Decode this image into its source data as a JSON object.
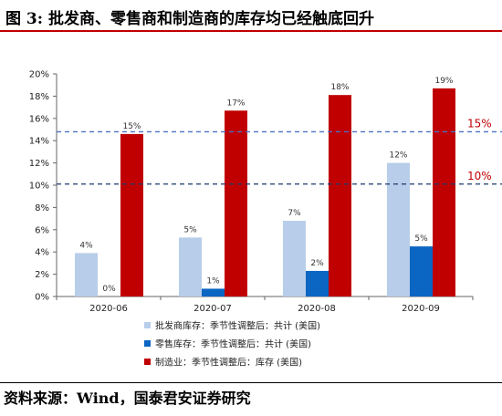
{
  "title": "图 3: 批发商、零售商和制造商的库存均已经触底回升",
  "source": "资料来源：Wind，国泰君安证券研究",
  "chart_data": {
    "type": "bar",
    "categories": [
      "2020-06",
      "2020-07",
      "2020-08",
      "2020-09"
    ],
    "ylim": [
      0,
      20
    ],
    "yticks": [
      "0%",
      "2%",
      "4%",
      "6%",
      "8%",
      "10%",
      "12%",
      "14%",
      "16%",
      "18%",
      "20%"
    ],
    "series": [
      {
        "name": "批发商库存：季节性调整后：共计 (美国)",
        "color": "#b7cde9",
        "values": [
          3.9,
          5.3,
          6.8,
          12.0
        ],
        "labels": [
          "4%",
          "5%",
          "7%",
          "12%"
        ]
      },
      {
        "name": "零售库存：季节性调整后：共计 (美国)",
        "color": "#0a66c2",
        "values": [
          0.0,
          0.7,
          2.3,
          4.5
        ],
        "labels": [
          "0%",
          "1%",
          "2%",
          "5%"
        ]
      },
      {
        "name": "制造业：季节性调整后：库存 (美国)",
        "color": "#c00000",
        "values": [
          14.6,
          16.7,
          18.1,
          18.7
        ],
        "labels": [
          "15%",
          "17%",
          "18%",
          "19%"
        ]
      }
    ],
    "reference_lines": [
      {
        "value": 14.8,
        "label": "15%",
        "color": "#4a72c4"
      },
      {
        "value": 10.1,
        "label": "10%",
        "color": "#1f3a6b"
      }
    ]
  }
}
